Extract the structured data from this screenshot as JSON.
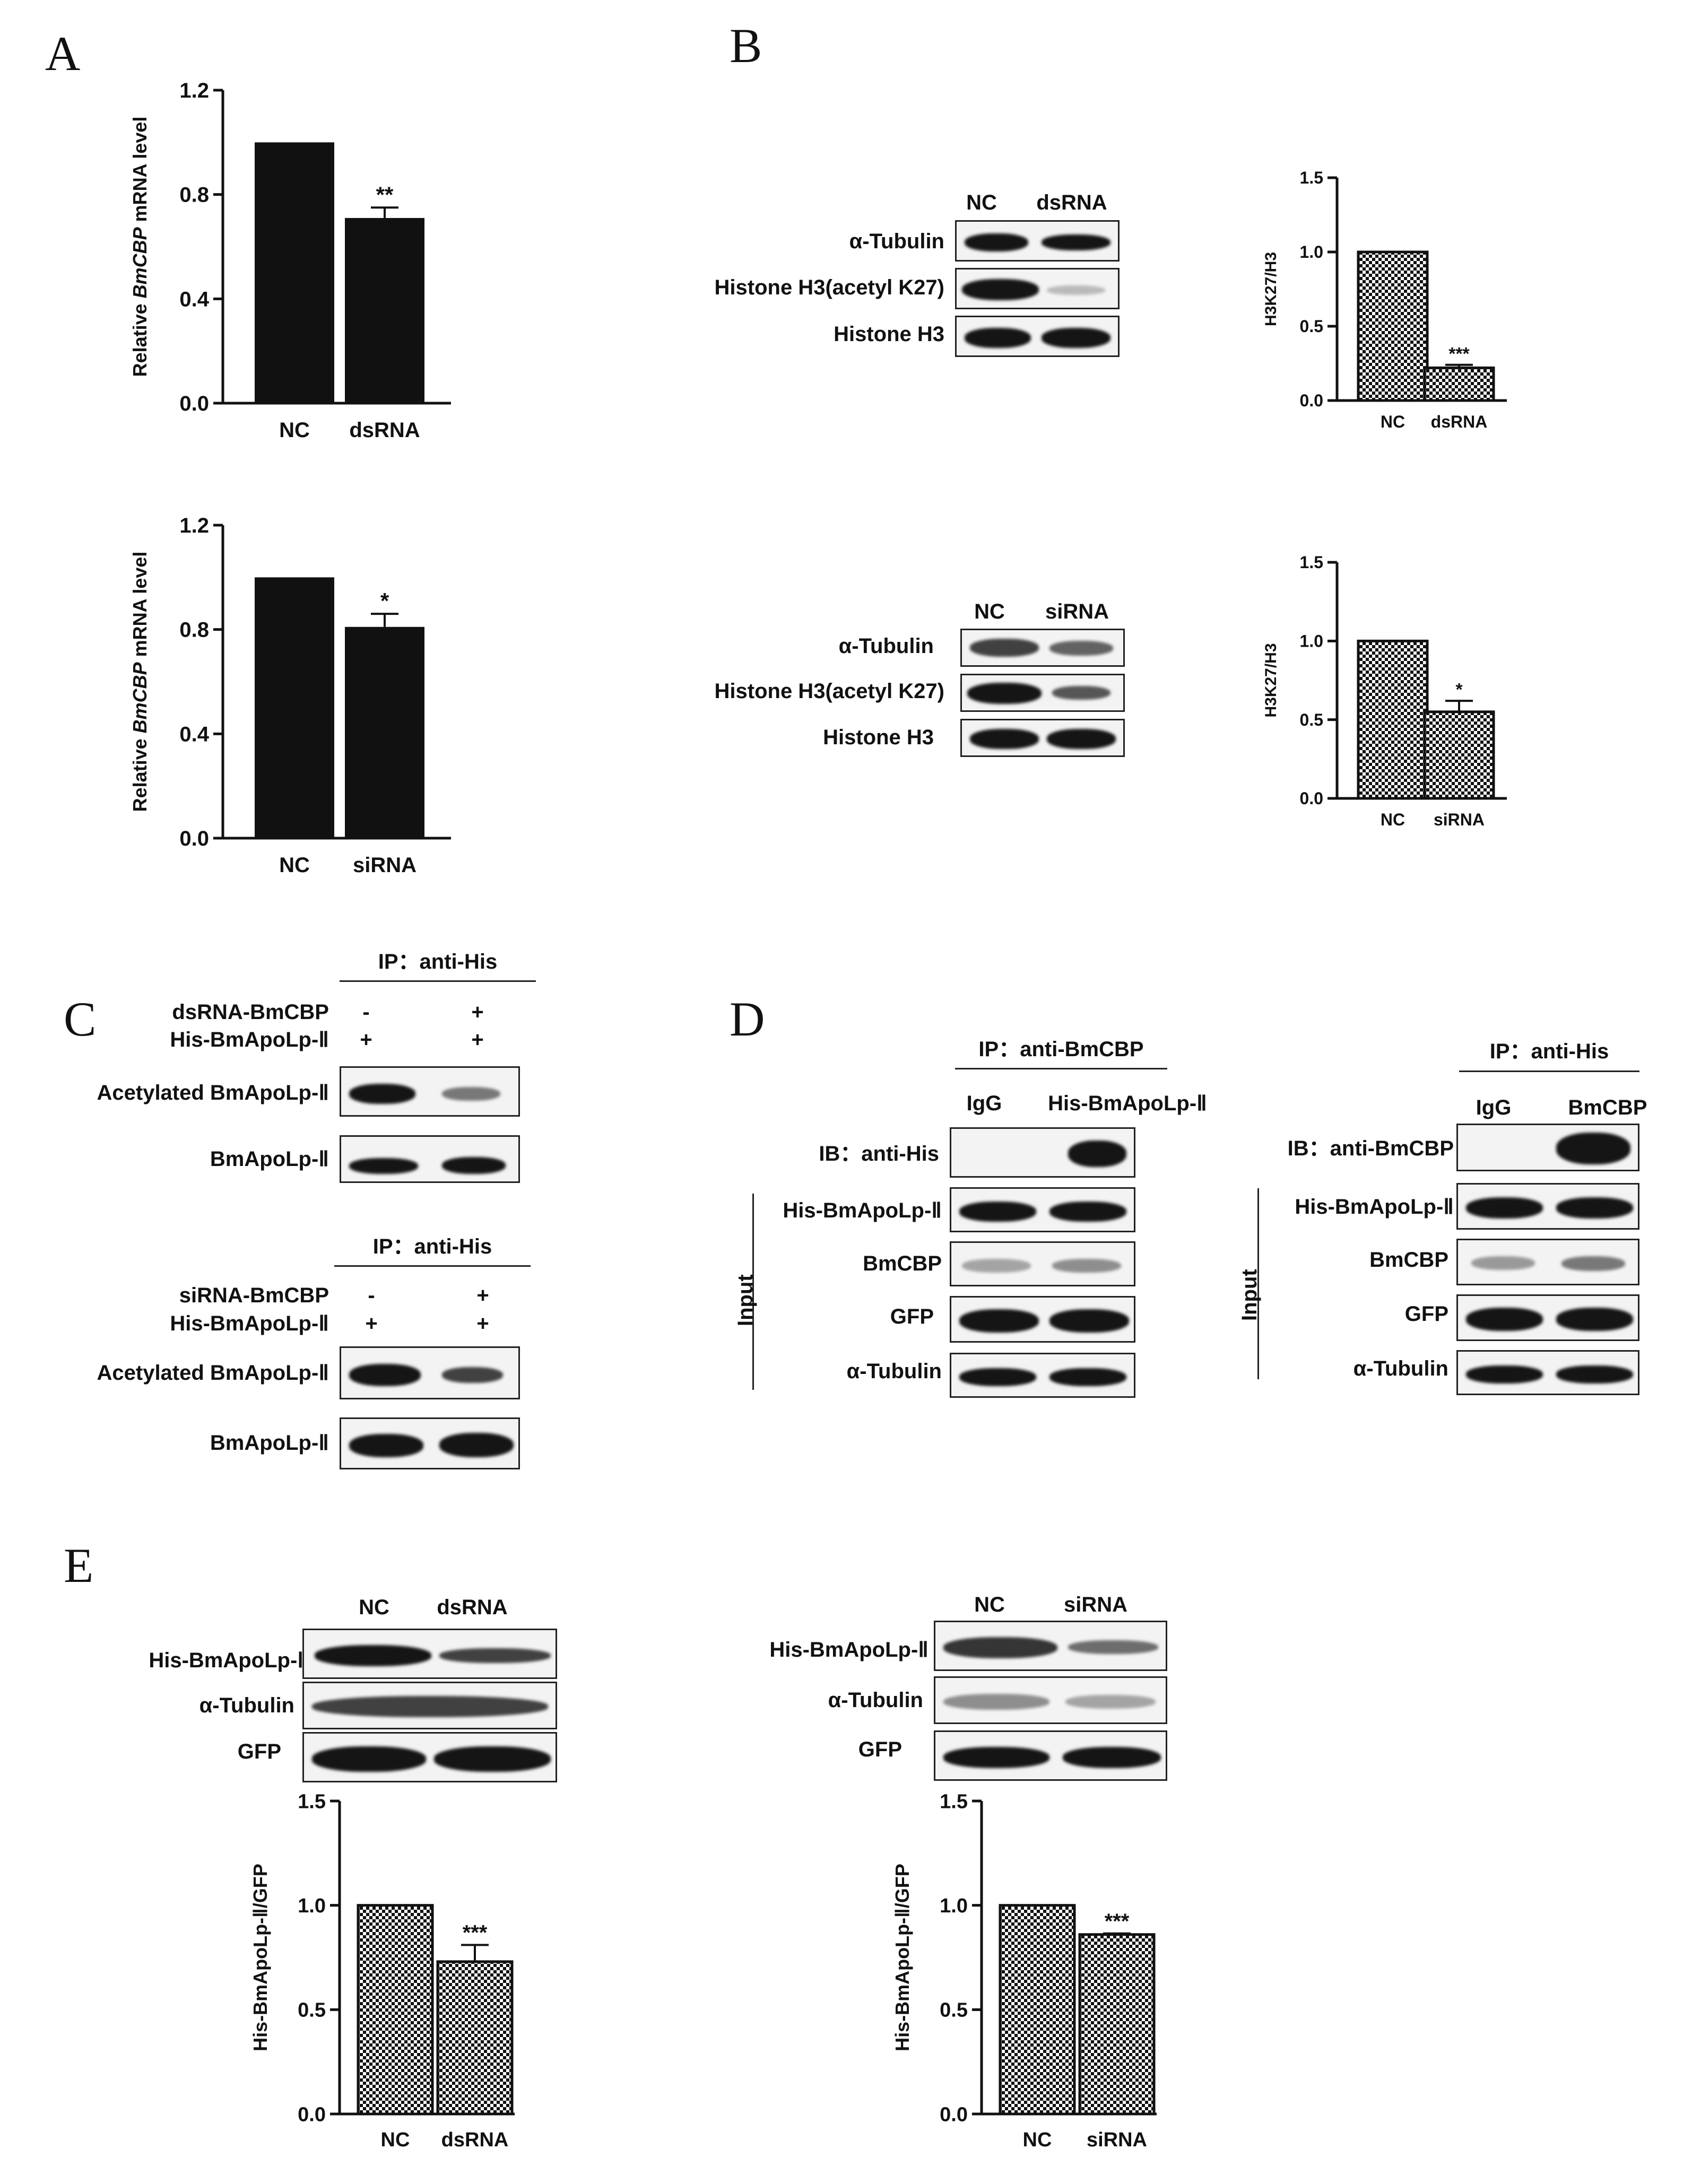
{
  "panel_labels": {
    "a": "A",
    "b": "B",
    "c": "C",
    "d": "D",
    "e": "E"
  },
  "icon_names": [
    "western-blot-band-icon"
  ],
  "colors": {
    "bar_solid": "#111111",
    "band": "#151515",
    "blot_bg": "#f3f3f3"
  },
  "blots": {
    "b_top": {
      "lanes": [
        "NC",
        "dsRNA"
      ],
      "rows": [
        "α-Tubulin",
        "Histone H3(acetyl K27)",
        "Histone H3"
      ]
    },
    "b_bottom": {
      "lanes": [
        "NC",
        "siRNA"
      ],
      "rows": [
        "α-Tubulin",
        "Histone H3(acetyl K27)",
        "Histone H3"
      ]
    },
    "c_top": {
      "ip": "IP：anti-His",
      "cond1": "dsRNA-BmCBP",
      "cond2": "His-BmApoLp-Ⅱ",
      "cond1_signs": [
        "-",
        "+"
      ],
      "cond2_signs": [
        "+",
        "+"
      ],
      "rows": [
        "Acetylated BmApoLp-Ⅱ",
        "BmApoLp-Ⅱ"
      ]
    },
    "c_bottom": {
      "ip": "IP：anti-His",
      "cond1": "siRNA-BmCBP",
      "cond2": "His-BmApoLp-Ⅱ",
      "cond1_signs": [
        "-",
        "+"
      ],
      "cond2_signs": [
        "+",
        "+"
      ],
      "rows": [
        "Acetylated BmApoLp-Ⅱ",
        "BmApoLp-Ⅱ"
      ]
    },
    "d_left": {
      "ip": "IP：anti-BmCBP",
      "lanes": [
        "IgG",
        "His-BmApoLp-Ⅱ"
      ],
      "ib": "IB：anti-His",
      "input_label": "Input",
      "input_rows": [
        "His-BmApoLp-Ⅱ",
        "BmCBP",
        "GFP",
        "α-Tubulin"
      ]
    },
    "d_right": {
      "ip": "IP：anti-His",
      "lanes": [
        "IgG",
        "BmCBP"
      ],
      "ib": "IB：anti-BmCBP",
      "input_label": "Input",
      "input_rows": [
        "His-BmApoLp-Ⅱ",
        "BmCBP",
        "GFP",
        "α-Tubulin"
      ]
    },
    "e_left": {
      "lanes": [
        "NC",
        "dsRNA"
      ],
      "rows": [
        "His-BmApoLp-Ⅱ",
        "α-Tubulin",
        "GFP"
      ]
    },
    "e_right": {
      "lanes": [
        "NC",
        "siRNA"
      ],
      "rows": [
        "His-BmApoLp-Ⅱ",
        "α-Tubulin",
        "GFP"
      ]
    }
  },
  "chart_data": [
    {
      "id": "A1",
      "type": "bar",
      "fill": "solid",
      "categories": [
        "NC",
        "dsRNA"
      ],
      "values": [
        1.0,
        0.71
      ],
      "errors": [
        0,
        0.04
      ],
      "sig": [
        "",
        "**"
      ],
      "ylabel_pre": "Relative ",
      "ylabel_italic": "BmCBP",
      "ylabel_post": " mRNA level",
      "ylim": [
        0,
        1.2
      ],
      "yticks": [
        "0.0",
        "0.4",
        "0.8",
        "1.2"
      ]
    },
    {
      "id": "A2",
      "type": "bar",
      "fill": "solid",
      "categories": [
        "NC",
        "siRNA"
      ],
      "values": [
        1.0,
        0.81
      ],
      "errors": [
        0,
        0.05
      ],
      "sig": [
        "",
        "*"
      ],
      "ylabel_pre": "Relative ",
      "ylabel_italic": "BmCBP",
      "ylabel_post": " mRNA level",
      "ylim": [
        0,
        1.2
      ],
      "yticks": [
        "0.0",
        "0.4",
        "0.8",
        "1.2"
      ]
    },
    {
      "id": "B1",
      "type": "bar",
      "fill": "checker",
      "categories": [
        "NC",
        "dsRNA"
      ],
      "values": [
        1.0,
        0.22
      ],
      "errors": [
        0,
        0.02
      ],
      "sig": [
        "",
        "***"
      ],
      "ylabel_pre": "H3K27/H3",
      "ylabel_italic": "",
      "ylabel_post": "",
      "ylim": [
        0,
        1.5
      ],
      "yticks": [
        "0.0",
        "0.5",
        "1.0",
        "1.5"
      ]
    },
    {
      "id": "B2",
      "type": "bar",
      "fill": "checker",
      "categories": [
        "NC",
        "siRNA"
      ],
      "values": [
        1.0,
        0.55
      ],
      "errors": [
        0,
        0.07
      ],
      "sig": [
        "",
        "*"
      ],
      "ylabel_pre": "H3K27/H3",
      "ylabel_italic": "",
      "ylabel_post": "",
      "ylim": [
        0,
        1.5
      ],
      "yticks": [
        "0.0",
        "0.5",
        "1.0",
        "1.5"
      ]
    },
    {
      "id": "E1",
      "type": "bar",
      "fill": "checker",
      "categories": [
        "NC",
        "dsRNA"
      ],
      "values": [
        1.0,
        0.73
      ],
      "errors": [
        0,
        0.08
      ],
      "sig": [
        "",
        "***"
      ],
      "ylabel_pre": "His-BmApoLp-Ⅱ/GFP",
      "ylabel_italic": "",
      "ylabel_post": "",
      "ylim": [
        0,
        1.5
      ],
      "yticks": [
        "0.0",
        "0.5",
        "1.0",
        "1.5"
      ]
    },
    {
      "id": "E2",
      "type": "bar",
      "fill": "checker",
      "categories": [
        "NC",
        "siRNA"
      ],
      "values": [
        1.0,
        0.86
      ],
      "errors": [
        0,
        0.005
      ],
      "sig": [
        "",
        "***"
      ],
      "ylabel_pre": "His-BmApoLp-Ⅱ/GFP",
      "ylabel_italic": "",
      "ylabel_post": "",
      "ylim": [
        0,
        1.5
      ],
      "yticks": [
        "0.0",
        "0.5",
        "1.0",
        "1.5"
      ]
    }
  ]
}
